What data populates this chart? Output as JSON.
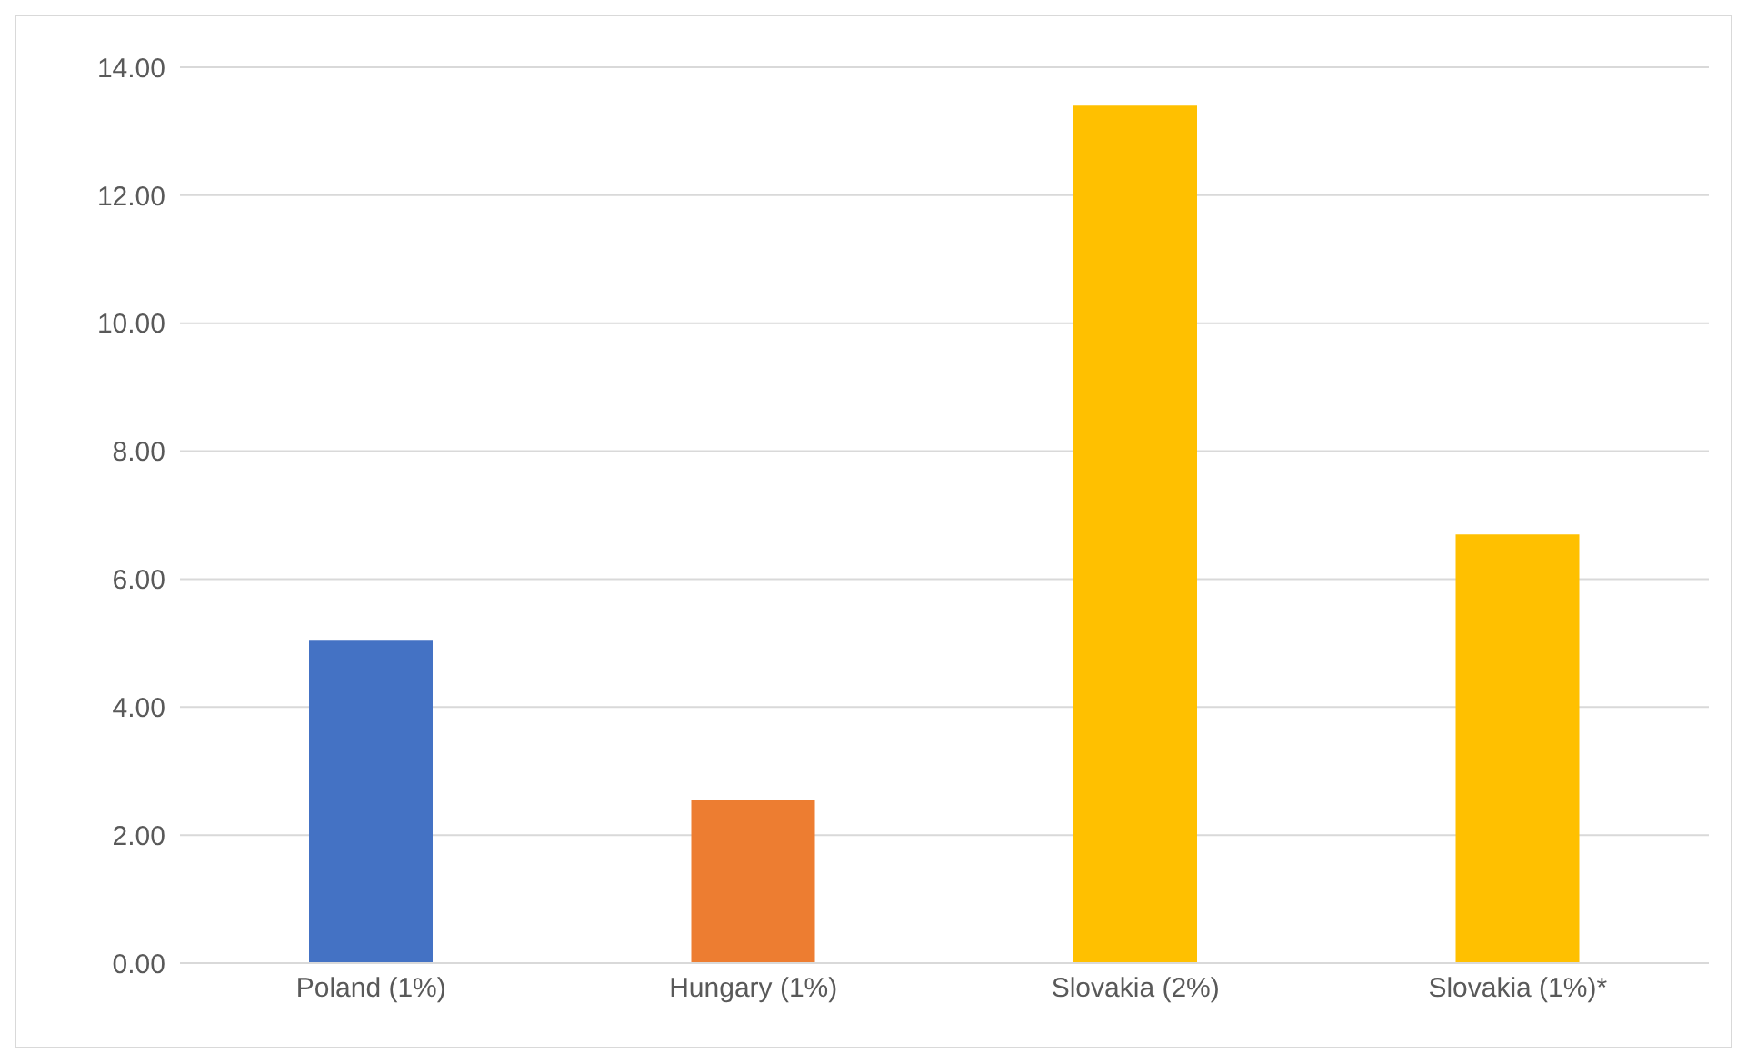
{
  "chart_data": {
    "type": "bar",
    "categories": [
      "Poland (1%)",
      "Hungary (1%)",
      "Slovakia (2%)",
      "Slovakia (1%)*"
    ],
    "values": [
      5.05,
      2.55,
      13.4,
      6.7
    ],
    "colors": [
      "#4472c4",
      "#ed7d31",
      "#ffc000",
      "#ffc000"
    ],
    "ylim": [
      0,
      14
    ],
    "yticks": [
      {
        "value": 0,
        "label": "0.00"
      },
      {
        "value": 2,
        "label": "2.00"
      },
      {
        "value": 4,
        "label": "4.00"
      },
      {
        "value": 6,
        "label": "6.00"
      },
      {
        "value": 8,
        "label": "8.00"
      },
      {
        "value": 10,
        "label": "10.00"
      },
      {
        "value": 12,
        "label": "12.00"
      },
      {
        "value": 14,
        "label": "14.00"
      }
    ],
    "grid": "y"
  }
}
